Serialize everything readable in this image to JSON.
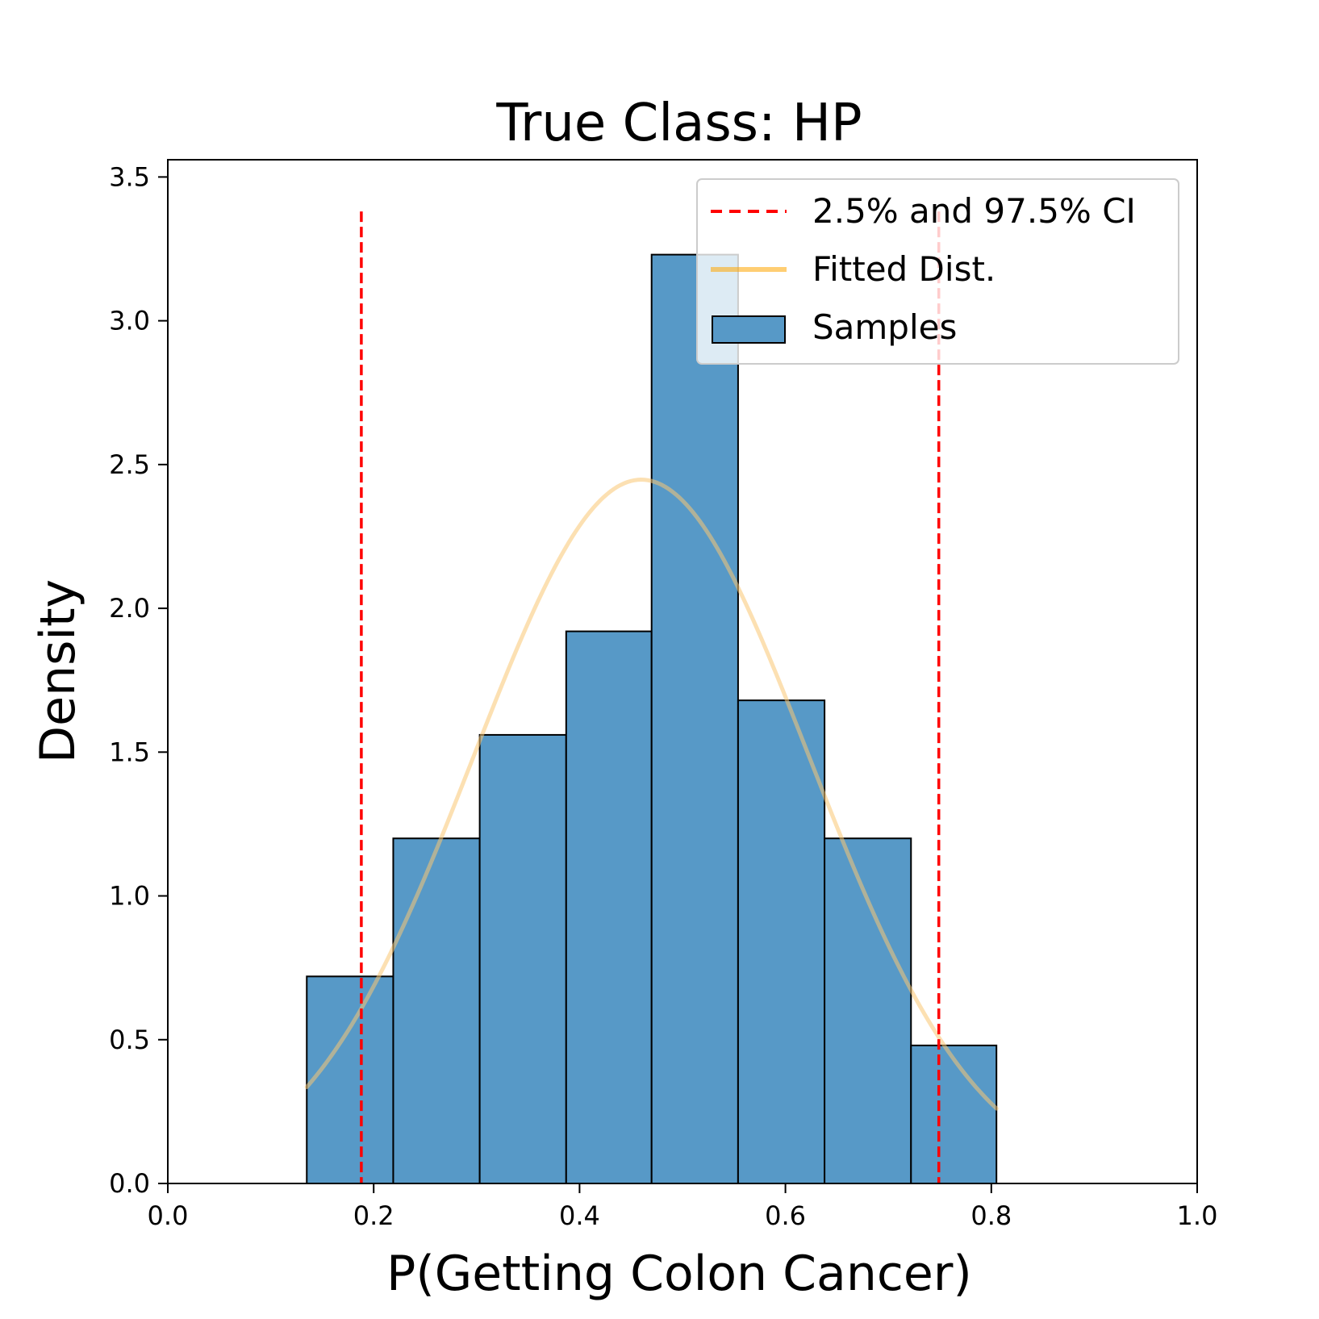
{
  "chart_data": {
    "type": "bar",
    "title": "True Class: HP",
    "xlabel": "P(Getting Colon Cancer)",
    "ylabel": "Density",
    "xlim": [
      0.0,
      1.0
    ],
    "ylim": [
      0.0,
      3.56
    ],
    "xticks": [
      "0.0",
      "0.2",
      "0.4",
      "0.6",
      "0.8",
      "1.0"
    ],
    "yticks": [
      "0.0",
      "0.5",
      "1.0",
      "1.5",
      "2.0",
      "2.5",
      "3.0",
      "3.5"
    ],
    "bins": [
      {
        "left": 0.135,
        "right": 0.219,
        "density": 0.72
      },
      {
        "left": 0.219,
        "right": 0.303,
        "density": 1.2
      },
      {
        "left": 0.303,
        "right": 0.387,
        "density": 1.56
      },
      {
        "left": 0.387,
        "right": 0.47,
        "density": 1.92
      },
      {
        "left": 0.47,
        "right": 0.554,
        "density": 3.23
      },
      {
        "left": 0.554,
        "right": 0.638,
        "density": 1.68
      },
      {
        "left": 0.638,
        "right": 0.722,
        "density": 1.2
      },
      {
        "left": 0.722,
        "right": 0.805,
        "density": 0.48
      }
    ],
    "fitted_dist": {
      "mean": 0.46,
      "std": 0.163,
      "x_start": 0.135,
      "x_end": 0.805
    },
    "ci_lines": {
      "lower": 0.188,
      "upper": 0.749,
      "y_top": 3.38
    },
    "legend": {
      "placement": "top-right",
      "entries": [
        {
          "label": "2.5% and 97.5% CI",
          "kind": "dashed-line",
          "color": "#ff0000"
        },
        {
          "label": "Fitted Dist.",
          "kind": "line",
          "color": "#ffa500"
        },
        {
          "label": "Samples",
          "kind": "patch",
          "color": "#1f77b4"
        }
      ]
    },
    "colors": {
      "bar_fill": "#5799c7",
      "bar_edge": "#000000",
      "curve": "#f9c772",
      "ci": "#ff0000"
    }
  }
}
